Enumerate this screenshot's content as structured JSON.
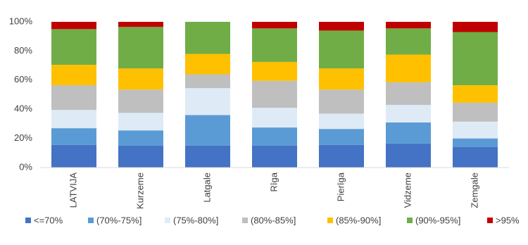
{
  "chart_data": {
    "type": "stacked_bar",
    "categories": [
      "LATVIJA",
      "Kurzeme",
      "Latgale",
      "Rīga",
      "Pierīga",
      "Vidzeme",
      "Zemgale"
    ],
    "series": [
      {
        "name": "<=70%",
        "color": "#4472c4",
        "values": [
          15.5,
          15,
          15,
          15,
          15.5,
          16.5,
          14
        ]
      },
      {
        "name": "(70%-75%]",
        "color": "#5b9bd5",
        "values": [
          11.5,
          10.5,
          21,
          12.5,
          11,
          14.5,
          6
        ]
      },
      {
        "name": "(75%-80%]",
        "color": "#deebf7",
        "values": [
          12.5,
          12,
          18.5,
          13.5,
          10.5,
          12,
          11.5
        ]
      },
      {
        "name": "(80%-85%]",
        "color": "#bfbfbf",
        "values": [
          17,
          16,
          9.5,
          18.5,
          16.5,
          15.5,
          13
        ]
      },
      {
        "name": "(85%-90%]",
        "color": "#ffc000",
        "values": [
          14,
          14.5,
          14,
          13,
          14.5,
          19,
          12
        ]
      },
      {
        "name": "(90%-95%]",
        "color": "#70ad47",
        "values": [
          24.5,
          28.5,
          22,
          23,
          26,
          18,
          36.5
        ]
      },
      {
        "name": ">95%",
        "color": "#c00000",
        "values": [
          5,
          3.5,
          0,
          4.5,
          6,
          4.5,
          7
        ]
      }
    ],
    "ylim": [
      0,
      100
    ],
    "yticks": [
      {
        "value": 0,
        "label": "0%"
      },
      {
        "value": 20,
        "label": "20%"
      },
      {
        "value": 40,
        "label": "40%"
      },
      {
        "value": 60,
        "label": "60%"
      },
      {
        "value": 80,
        "label": "80%"
      },
      {
        "value": 100,
        "label": "100%"
      }
    ],
    "legend": "bottom"
  }
}
